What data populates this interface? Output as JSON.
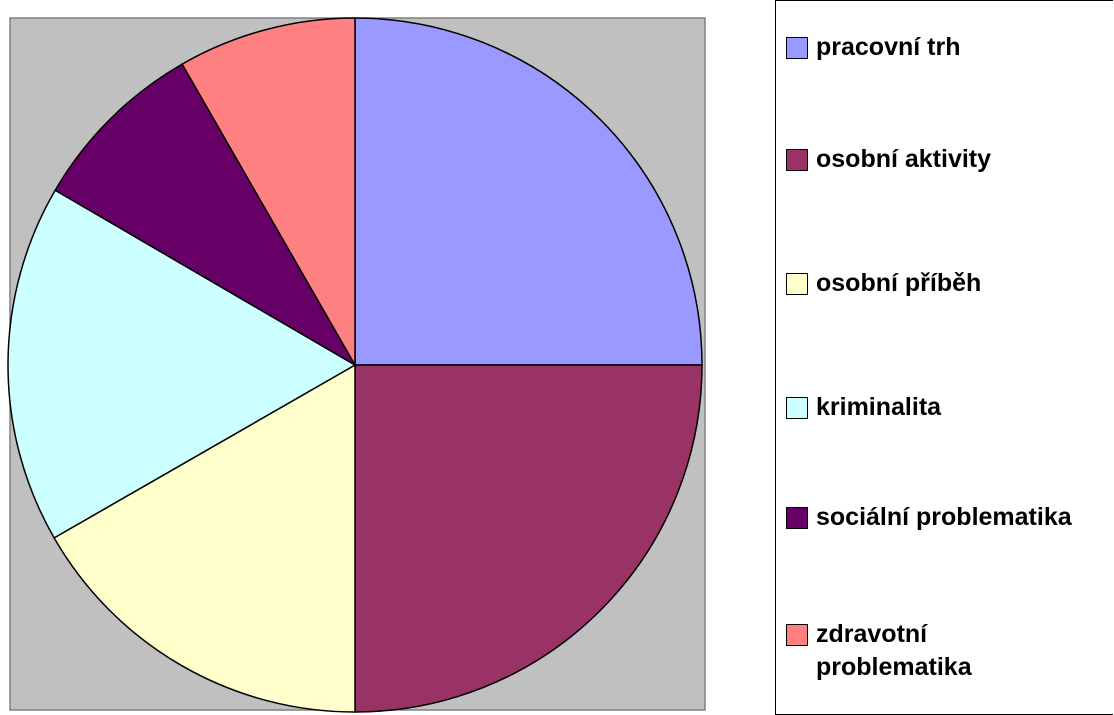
{
  "chart_data": {
    "type": "pie",
    "categories": [
      "pracovní trh",
      "osobní aktivity",
      "osobní příběh",
      "kriminalita",
      "sociální problematika",
      "zdravotní problematika"
    ],
    "values": [
      25,
      25,
      16.7,
      16.7,
      8.3,
      8.3
    ],
    "colors": [
      "#9999ff",
      "#993366",
      "#ffffcc",
      "#ccffff",
      "#660066",
      "#ff8080"
    ],
    "legend": "right"
  }
}
